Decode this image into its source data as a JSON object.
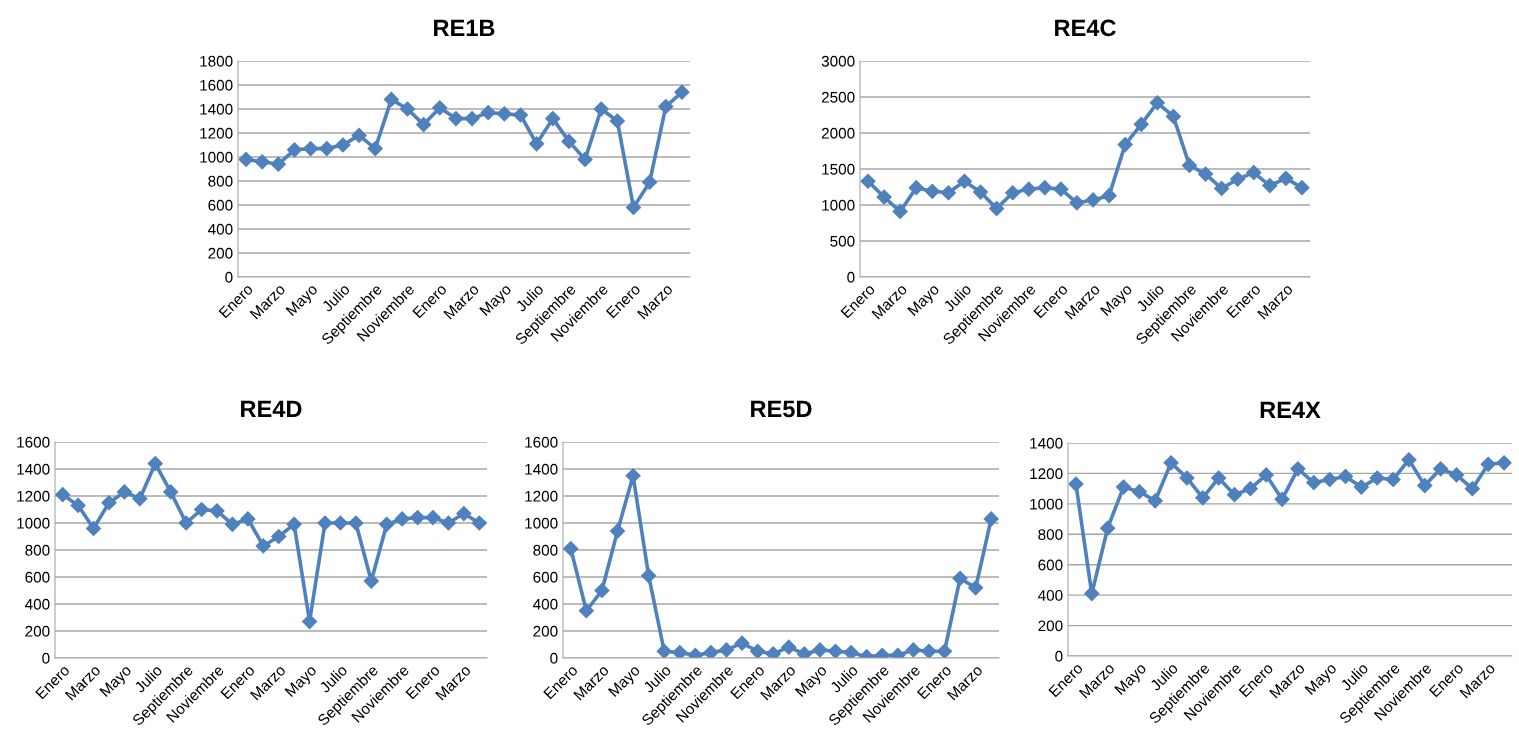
{
  "chart_data": [
    {
      "type": "line",
      "title": "RE1B",
      "categories": [
        "Enero",
        null,
        "Marzo",
        null,
        "Mayo",
        null,
        "Julio",
        null,
        "Septiembre",
        null,
        "Noviembre",
        null,
        "Enero",
        null,
        "Marzo",
        null,
        "Mayo",
        null,
        "Julio",
        null,
        "Septiembre",
        null,
        "Noviembre",
        null,
        "Enero",
        null,
        "Marzo",
        null
      ],
      "series": [
        {
          "color": "#4f81bd",
          "values": [
            980,
            960,
            940,
            1060,
            1070,
            1070,
            1100,
            1180,
            1070,
            1480,
            1400,
            1270,
            1410,
            1320,
            1320,
            1370,
            1360,
            1350,
            1110,
            1320,
            1130,
            980,
            1400,
            1300,
            580,
            790,
            1420,
            1540
          ]
        }
      ],
      "ylim": [
        0,
        1800
      ],
      "yticks": [
        0,
        200,
        400,
        600,
        800,
        1000,
        1200,
        1400,
        1600,
        1800
      ],
      "grid": "y",
      "legend": false,
      "marker": "diamond",
      "line_style": "solid"
    },
    {
      "type": "line",
      "title": "RE4C",
      "categories": [
        "Enero",
        null,
        "Marzo",
        null,
        "Mayo",
        null,
        "Julio",
        null,
        "Septiembre",
        null,
        "Noviembre",
        null,
        "Enero",
        null,
        "Marzo",
        null,
        "Mayo",
        null,
        "Julio",
        null,
        "Septiembre",
        null,
        "Noviembre",
        null,
        "Enero",
        null,
        "Marzo",
        null
      ],
      "series": [
        {
          "color": "#4f81bd",
          "values": [
            1330,
            1110,
            910,
            1240,
            1190,
            1170,
            1330,
            1180,
            950,
            1170,
            1220,
            1240,
            1220,
            1030,
            1070,
            1130,
            1840,
            2120,
            2420,
            2230,
            1550,
            1430,
            1230,
            1360,
            1450,
            1270,
            1370,
            1240
          ]
        }
      ],
      "ylim": [
        0,
        3000
      ],
      "yticks": [
        0,
        500,
        1000,
        1500,
        2000,
        2500,
        3000
      ],
      "grid": "y",
      "legend": false,
      "marker": "diamond",
      "line_style": "solid"
    },
    {
      "type": "line",
      "title": "RE4D",
      "categories": [
        "Enero",
        null,
        "Marzo",
        null,
        "Mayo",
        null,
        "Julio",
        null,
        "Septiembre",
        null,
        "Noviembre",
        null,
        "Enero",
        null,
        "Marzo",
        null,
        "Mayo",
        null,
        "Julio",
        null,
        "Septiembre",
        null,
        "Noviembre",
        null,
        "Enero",
        null,
        "Marzo",
        null
      ],
      "series": [
        {
          "color": "#4f81bd",
          "values": [
            1210,
            1130,
            960,
            1150,
            1230,
            1180,
            1440,
            1230,
            1000,
            1100,
            1090,
            990,
            1030,
            830,
            900,
            990,
            270,
            1000,
            1000,
            1000,
            570,
            990,
            1030,
            1040,
            1040,
            1000,
            1070,
            1000
          ]
        }
      ],
      "ylim": [
        0,
        1600
      ],
      "yticks": [
        0,
        200,
        400,
        600,
        800,
        1000,
        1200,
        1400,
        1600
      ],
      "grid": "y",
      "legend": false,
      "marker": "diamond",
      "line_style": "solid"
    },
    {
      "type": "line",
      "title": "RE5D",
      "categories": [
        "Enero",
        null,
        "Marzo",
        null,
        "Mayo",
        null,
        "Julio",
        null,
        "Septiembre",
        null,
        "Noviembre",
        null,
        "Enero",
        null,
        "Marzo",
        null,
        "Mayo",
        null,
        "Julio",
        null,
        "Septiembre",
        null,
        "Noviembre",
        null,
        "Enero",
        null,
        "Marzo",
        null
      ],
      "series": [
        {
          "color": "#4f81bd",
          "values": [
            810,
            350,
            500,
            940,
            1350,
            610,
            50,
            40,
            20,
            40,
            60,
            110,
            50,
            30,
            80,
            30,
            60,
            50,
            40,
            10,
            20,
            20,
            60,
            50,
            50,
            590,
            520,
            1030
          ]
        }
      ],
      "ylim": [
        0,
        1600
      ],
      "yticks": [
        0,
        200,
        400,
        600,
        800,
        1000,
        1200,
        1400,
        1600
      ],
      "grid": "y",
      "legend": false,
      "marker": "diamond",
      "line_style": "solid"
    },
    {
      "type": "line",
      "title": "RE4X",
      "categories": [
        "Enero",
        null,
        "Marzo",
        null,
        "Mayo",
        null,
        "Julio",
        null,
        "Septiembre",
        null,
        "Noviembre",
        null,
        "Enero",
        null,
        "Marzo",
        null,
        "Mayo",
        null,
        "Julio",
        null,
        "Septiembre",
        null,
        "Noviembre",
        null,
        "Enero",
        null,
        "Marzo",
        null
      ],
      "series": [
        {
          "color": "#4f81bd",
          "values": [
            1130,
            410,
            840,
            1110,
            1080,
            1020,
            1270,
            1170,
            1040,
            1170,
            1060,
            1100,
            1190,
            1030,
            1230,
            1140,
            1160,
            1180,
            1110,
            1170,
            1160,
            1290,
            1120,
            1230,
            1190,
            1100,
            1260,
            1270
          ]
        }
      ],
      "ylim": [
        0,
        1400
      ],
      "yticks": [
        0,
        200,
        400,
        600,
        800,
        1000,
        1200,
        1400
      ],
      "grid": "y",
      "legend": false,
      "marker": "diamond",
      "line_style": "solid"
    }
  ]
}
